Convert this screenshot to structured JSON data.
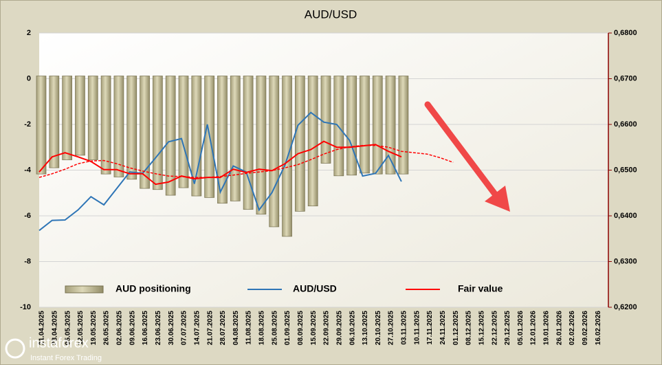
{
  "chart_data": {
    "type": "bar",
    "title": "AUD/USD",
    "categories": [
      "21.04.2025",
      "28.04.2025",
      "05.05.2025",
      "12.05.2025",
      "19.05.2025",
      "26.05.2025",
      "02.06.2025",
      "09.06.2025",
      "16.06.2025",
      "23.06.2025",
      "30.06.2025",
      "07.07.2025",
      "14.07.2025",
      "21.07.2025",
      "28.07.2025",
      "04.08.2025",
      "11.08.2025",
      "18.08.2025",
      "25.08.2025",
      "01.09.2025",
      "08.09.2025",
      "15.09.2025",
      "22.09.2025",
      "29.09.2025",
      "06.10.2025",
      "13.10.2025",
      "20.10.2025",
      "27.10.2025",
      "03.11.2025",
      "10.11.2025",
      "17.11.2025",
      "24.11.2025",
      "01.12.2025",
      "08.12.2025",
      "15.12.2025",
      "22.12.2025",
      "29.12.2025",
      "05.01.2026",
      "12.01.2026",
      "19.01.2026",
      "26.01.2026",
      "02.02.2026",
      "09.02.2026",
      "16.02.2026"
    ],
    "series": [
      {
        "name": "AUD positioning",
        "type": "bar",
        "color": "#c4bd97",
        "values": [
          -4.17,
          -3.9,
          -3.55,
          -3.35,
          -3.55,
          -4.17,
          -4.3,
          -4.4,
          -4.8,
          -4.85,
          -5.1,
          -4.77,
          -5.13,
          -5.2,
          -5.45,
          -5.35,
          -5.72,
          -5.93,
          -6.48,
          -6.9,
          -5.8,
          -5.57,
          -3.7,
          -4.25,
          -4.22,
          -4.13,
          -4.17,
          -4.17,
          -4.17,
          null,
          null,
          null,
          null,
          null,
          null,
          null,
          null,
          null,
          null,
          null,
          null,
          null,
          null,
          null
        ]
      },
      {
        "name": "AUD/USD",
        "type": "line",
        "axis": "y2",
        "color": "#2e75b6",
        "values": [
          0.6368,
          0.639,
          0.6391,
          0.6413,
          0.6442,
          0.6424,
          0.646,
          0.6496,
          0.6493,
          0.6527,
          0.6562,
          0.6569,
          0.647,
          0.66,
          0.6452,
          0.6509,
          0.6496,
          0.6413,
          0.6451,
          0.6511,
          0.6598,
          0.6626,
          0.6605,
          0.66,
          0.6565,
          0.6487,
          0.6493,
          0.6532,
          0.6475,
          null,
          null,
          null,
          null,
          null,
          null,
          null,
          null,
          null,
          null,
          null,
          null,
          null,
          null,
          null
        ]
      },
      {
        "name": "Fair value",
        "type": "line",
        "axis": "y2",
        "color": "#ff0000",
        "values": [
          0.6496,
          0.6529,
          0.6538,
          0.6529,
          0.6519,
          0.6501,
          0.6501,
          0.6492,
          0.6492,
          0.6469,
          0.6474,
          0.6487,
          0.6481,
          0.6484,
          0.6484,
          0.6502,
          0.6495,
          0.6502,
          0.6499,
          0.6514,
          0.6536,
          0.6545,
          0.6563,
          0.655,
          0.655,
          0.6553,
          0.6556,
          0.6541,
          0.6529,
          null,
          null,
          null,
          null,
          null,
          null,
          null,
          null,
          null,
          null,
          null,
          null,
          null,
          null,
          null
        ]
      },
      {
        "type": "line",
        "axis": "y2",
        "color": "#ff0000",
        "dashed": true,
        "values": [
          0.6484,
          0.6492,
          0.6502,
          0.6514,
          0.652,
          0.6521,
          0.6514,
          0.6505,
          0.6498,
          0.6492,
          0.6487,
          0.6486,
          0.6484,
          0.6484,
          0.6486,
          0.6489,
          0.6493,
          0.6496,
          0.6499,
          0.6505,
          0.6512,
          0.6523,
          0.6535,
          0.6545,
          0.6551,
          0.6554,
          0.6554,
          0.655,
          0.6541,
          0.6538,
          0.6535,
          0.6527,
          0.6517,
          null,
          null,
          null,
          null,
          null,
          null,
          null,
          null,
          null,
          null,
          null
        ]
      }
    ],
    "ylim": [
      -10,
      2
    ],
    "yticks": [
      -10,
      -8,
      -6,
      -4,
      -2,
      0,
      2
    ],
    "y2lim": [
      0.62,
      0.68
    ],
    "y2ticks": [
      {
        "value": 0.62,
        "label": "0,6200"
      },
      {
        "value": 0.63,
        "label": "0,6300"
      },
      {
        "value": 0.64,
        "label": "0,6400"
      },
      {
        "value": 0.65,
        "label": "0,6500"
      },
      {
        "value": 0.66,
        "label": "0,6600"
      },
      {
        "value": 0.67,
        "label": "0,6700"
      },
      {
        "value": 0.68,
        "label": "0,6800"
      }
    ],
    "grid": true,
    "legend": "bottom"
  },
  "watermark": {
    "brand": "instaforex",
    "tagline": "Instant Forex Trading"
  }
}
